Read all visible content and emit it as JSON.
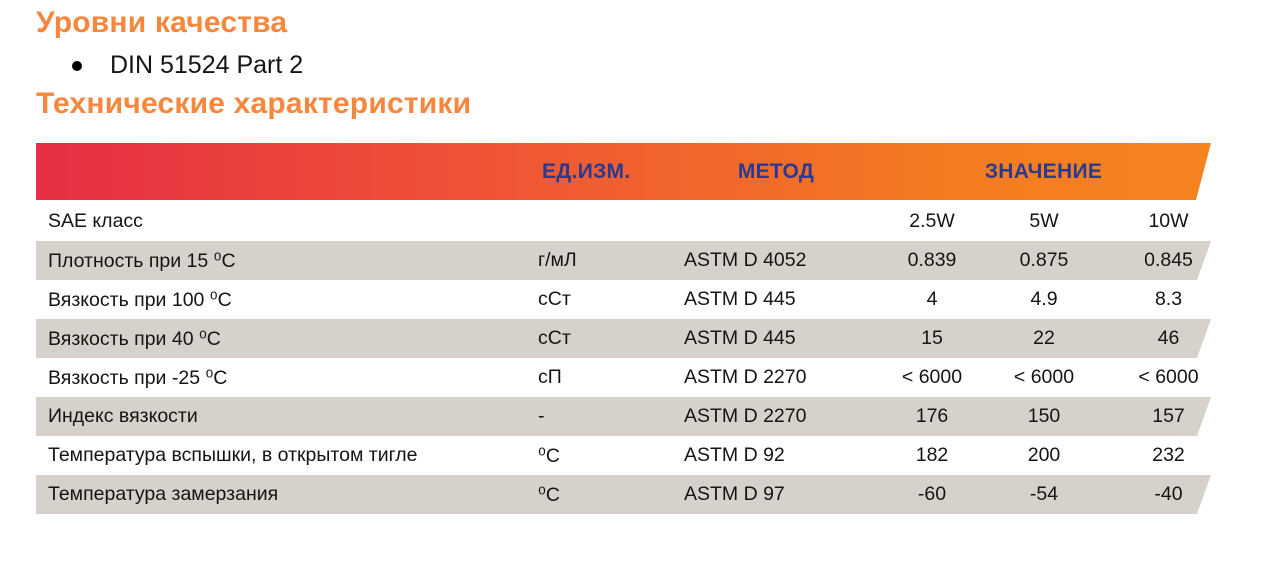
{
  "colors": {
    "heading_orange": "#f6873c",
    "gradient_left": "#e72e44",
    "gradient_mid": "#ef5137",
    "gradient_right": "#f47b20",
    "header_text_blue": "#2b3990",
    "row_shade_gray": "#d6d2cb",
    "body_text": "#111111"
  },
  "quality": {
    "heading": "Уровни качества",
    "items": [
      "DIN 51524 Part 2"
    ]
  },
  "specs": {
    "heading": "Технические характеристики",
    "table": {
      "columns": {
        "unit": "ЕД.ИЗМ.",
        "method": "МЕТОД",
        "value": "ЗНАЧЕНИЕ"
      },
      "rows": [
        {
          "param": "SAE класс",
          "unit": "",
          "method": "",
          "values": [
            "2.5W",
            "5W",
            "10W"
          ]
        },
        {
          "param": "Плотность при 15 ⁰C",
          "unit": "г/мЛ",
          "method": "ASTM D 4052",
          "values": [
            "0.839",
            "0.875",
            "0.845"
          ]
        },
        {
          "param": "Вязкость при 100 ⁰C",
          "unit": "сСт",
          "method": "ASTM D 445",
          "values": [
            "4",
            "4.9",
            "8.3"
          ]
        },
        {
          "param": "Вязкость при 40 ⁰C",
          "unit": "сСт",
          "method": "ASTM D 445",
          "values": [
            "15",
            "22",
            "46"
          ]
        },
        {
          "param": "Вязкость при -25 ⁰C",
          "unit": "сП",
          "method": "ASTM D 2270",
          "values": [
            "< 6000",
            "< 6000",
            "< 6000"
          ]
        },
        {
          "param": "Индекс вязкости",
          "unit": "-",
          "method": "ASTM D 2270",
          "values": [
            "176",
            "150",
            "157"
          ]
        },
        {
          "param": "Температура вспышки, в открытом тигле",
          "unit": "⁰C",
          "method": "ASTM D 92",
          "values": [
            "182",
            "200",
            "232"
          ]
        },
        {
          "param": "Температура замерзания",
          "unit": "⁰C",
          "method": "ASTM D 97",
          "values": [
            "-60",
            "-54",
            "-40"
          ]
        }
      ]
    }
  }
}
